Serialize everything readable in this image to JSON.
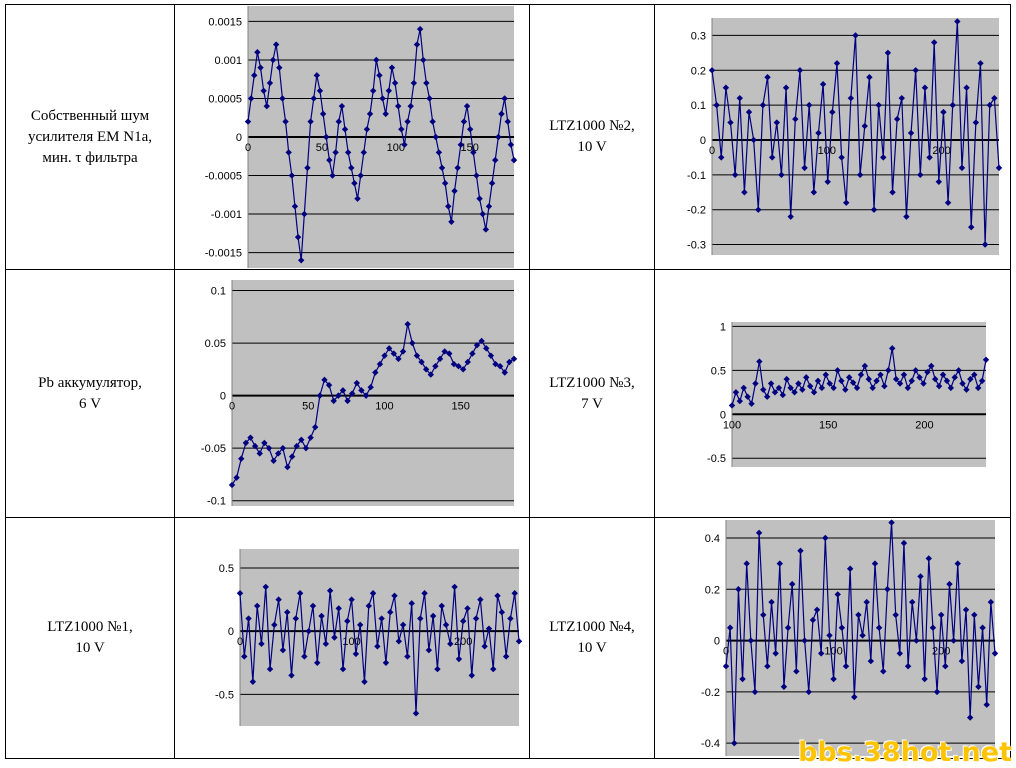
{
  "table": {
    "rows": [
      {
        "left_label": "Собственный шум\nусилителя EM N1a,\nмин. τ фильтра",
        "right_label": "LTZ1000 №2,\n10 V"
      },
      {
        "left_label": "Pb аккумулятор,\n6 V",
        "right_label": "LTZ1000 №3,\n7 V"
      },
      {
        "left_label": "LTZ1000 №1,\n10 V",
        "right_label": "LTZ1000 №4,\n10 V"
      }
    ]
  },
  "watermark": "bbs.38hot.net",
  "colors": {
    "plot_bg": "#c0c0c0",
    "series": "#000080",
    "grid": "#000000"
  },
  "chart_data": [
    {
      "type": "line",
      "title": "",
      "xlabel": "",
      "ylabel": "",
      "xlim": [
        0,
        180
      ],
      "ylim": [
        -0.0017,
        0.0017
      ],
      "yticks": [
        "0.0015",
        "0.001",
        "0.0005",
        "0",
        "-0.0005",
        "-0.001",
        "-0.0015"
      ],
      "xticks": [
        "0",
        "50",
        "100",
        "150"
      ],
      "grid": true,
      "markers": "diamond",
      "series": [
        {
          "values": [
            0.0002,
            0.0005,
            0.0008,
            0.0011,
            0.0009,
            0.0006,
            0.0004,
            0.0007,
            0.001,
            0.0012,
            0.0009,
            0.0005,
            0.0002,
            -0.0002,
            -0.0005,
            -0.0009,
            -0.0013,
            -0.0016,
            -0.001,
            -0.0004,
            0.0002,
            0.0005,
            0.0008,
            0.0006,
            0.0003,
            0.0,
            -0.0003,
            -0.0005,
            -0.0002,
            0.0002,
            0.0004,
            0.0001,
            -0.0002,
            -0.0004,
            -0.0006,
            -0.0008,
            -0.0005,
            -0.0002,
            0.0001,
            0.0003,
            0.0006,
            0.001,
            0.0008,
            0.0005,
            0.0003,
            0.0006,
            0.0009,
            0.0007,
            0.0004,
            0.0001,
            -0.0001,
            0.0002,
            0.0004,
            0.0007,
            0.0012,
            0.0014,
            0.001,
            0.0007,
            0.0005,
            0.0002,
            0.0,
            -0.0002,
            -0.0004,
            -0.0006,
            -0.0009,
            -0.0011,
            -0.0007,
            -0.0004,
            -0.0001,
            0.0002,
            0.0004,
            0.0001,
            -0.0002,
            -0.0005,
            -0.0008,
            -0.001,
            -0.0012,
            -0.0009,
            -0.0006,
            -0.0003,
            0.0,
            0.0003,
            0.0005,
            0.0002,
            -0.0001,
            -0.0003
          ]
        }
      ]
    },
    {
      "type": "line",
      "title": "",
      "xlabel": "",
      "ylabel": "",
      "xlim": [
        0,
        250
      ],
      "ylim": [
        -0.33,
        0.35
      ],
      "yticks": [
        "0.3",
        "0.2",
        "0.1",
        "0",
        "-0.1",
        "-0.2",
        "-0.3"
      ],
      "xticks": [
        "0",
        "100",
        "200"
      ],
      "grid": true,
      "markers": "diamond",
      "series": [
        {
          "values": [
            0.2,
            0.1,
            -0.05,
            0.15,
            0.05,
            -0.1,
            0.12,
            -0.15,
            0.08,
            0.0,
            -0.2,
            0.1,
            0.18,
            -0.05,
            0.05,
            -0.1,
            0.15,
            -0.22,
            0.06,
            0.2,
            -0.08,
            0.1,
            -0.15,
            0.02,
            0.16,
            -0.12,
            0.08,
            0.22,
            -0.05,
            -0.18,
            0.12,
            0.3,
            -0.1,
            0.04,
            0.18,
            -0.2,
            0.1,
            -0.05,
            0.25,
            -0.15,
            0.06,
            0.12,
            -0.22,
            0.02,
            0.2,
            -0.1,
            0.15,
            -0.05,
            0.28,
            -0.12,
            0.08,
            -0.18,
            0.1,
            0.34,
            -0.08,
            0.15,
            -0.25,
            0.05,
            0.22,
            -0.3,
            0.1,
            0.12,
            -0.08
          ]
        }
      ]
    },
    {
      "type": "line",
      "title": "",
      "xlabel": "",
      "ylabel": "",
      "xlim": [
        0,
        185
      ],
      "ylim": [
        -0.105,
        0.11
      ],
      "yticks": [
        "0.1",
        "0.05",
        "0",
        "-0.05",
        "-0.1"
      ],
      "xticks": [
        "0",
        "50",
        "100",
        "150"
      ],
      "grid": true,
      "markers": "diamond",
      "series": [
        {
          "values": [
            -0.085,
            -0.078,
            -0.06,
            -0.045,
            -0.04,
            -0.048,
            -0.055,
            -0.045,
            -0.05,
            -0.062,
            -0.055,
            -0.05,
            -0.068,
            -0.058,
            -0.048,
            -0.042,
            -0.05,
            -0.04,
            -0.03,
            0.0,
            0.015,
            0.01,
            -0.005,
            0.0,
            0.005,
            -0.005,
            0.002,
            0.012,
            0.005,
            0.0,
            0.008,
            0.022,
            0.03,
            0.038,
            0.045,
            0.04,
            0.035,
            0.042,
            0.068,
            0.05,
            0.038,
            0.032,
            0.025,
            0.02,
            0.028,
            0.035,
            0.042,
            0.04,
            0.03,
            0.028,
            0.025,
            0.032,
            0.04,
            0.048,
            0.052,
            0.045,
            0.038,
            0.03,
            0.028,
            0.022,
            0.032,
            0.035
          ]
        }
      ]
    },
    {
      "type": "line",
      "title": "",
      "xlabel": "",
      "ylabel": "",
      "xlim": [
        100,
        232
      ],
      "ylim": [
        -0.6,
        1.05
      ],
      "yticks": [
        "1",
        "0.5",
        "0",
        "-0.5"
      ],
      "xticks": [
        "100",
        "150",
        "200"
      ],
      "grid": true,
      "markers": "diamond",
      "series": [
        {
          "values": [
            0.1,
            0.25,
            0.15,
            0.3,
            0.2,
            0.12,
            0.35,
            0.6,
            0.28,
            0.2,
            0.35,
            0.25,
            0.3,
            0.22,
            0.4,
            0.3,
            0.25,
            0.35,
            0.28,
            0.42,
            0.32,
            0.25,
            0.38,
            0.3,
            0.45,
            0.35,
            0.3,
            0.5,
            0.38,
            0.28,
            0.42,
            0.36,
            0.3,
            0.45,
            0.55,
            0.4,
            0.3,
            0.38,
            0.45,
            0.32,
            0.5,
            0.75,
            0.4,
            0.35,
            0.45,
            0.3,
            0.38,
            0.5,
            0.42,
            0.35,
            0.48,
            0.55,
            0.4,
            0.32,
            0.45,
            0.38,
            0.3,
            0.42,
            0.5,
            0.35,
            0.28,
            0.4,
            0.45,
            0.3,
            0.38,
            0.62
          ]
        }
      ]
    },
    {
      "type": "line",
      "title": "",
      "xlabel": "",
      "ylabel": "",
      "xlim": [
        0,
        250
      ],
      "ylim": [
        -0.75,
        0.65
      ],
      "yticks": [
        "0.5",
        "0",
        "-0.5"
      ],
      "xticks": [
        "0",
        "100",
        "200"
      ],
      "grid": true,
      "markers": "diamond",
      "series": [
        {
          "values": [
            0.3,
            -0.2,
            0.1,
            -0.4,
            0.2,
            -0.1,
            0.35,
            -0.3,
            0.05,
            0.25,
            -0.15,
            0.15,
            -0.35,
            0.1,
            0.3,
            -0.2,
            0.0,
            0.2,
            -0.25,
            0.12,
            -0.1,
            0.32,
            -0.05,
            0.18,
            -0.3,
            0.08,
            0.25,
            -0.18,
            0.05,
            -0.4,
            0.2,
            0.3,
            -0.12,
            0.1,
            -0.25,
            0.15,
            0.28,
            -0.08,
            0.05,
            -0.2,
            0.22,
            -0.65,
            0.1,
            0.3,
            -0.15,
            0.12,
            -0.3,
            0.2,
            0.05,
            -0.1,
            0.35,
            -0.22,
            0.08,
            0.18,
            -0.35,
            0.1,
            0.25,
            -0.12,
            0.02,
            -0.3,
            0.28,
            0.15,
            -0.2,
            0.1,
            0.3,
            -0.08
          ]
        }
      ]
    },
    {
      "type": "line",
      "title": "",
      "xlabel": "",
      "ylabel": "",
      "xlim": [
        0,
        250
      ],
      "ylim": [
        -0.45,
        0.47
      ],
      "yticks": [
        "0.4",
        "0.2",
        "0",
        "-0.2",
        "-0.4"
      ],
      "xticks": [
        "0",
        "100",
        "200"
      ],
      "grid": true,
      "markers": "diamond",
      "series": [
        {
          "values": [
            -0.1,
            0.05,
            -0.4,
            0.2,
            -0.15,
            0.3,
            0.0,
            -0.2,
            0.42,
            0.1,
            -0.1,
            0.15,
            -0.05,
            0.3,
            -0.18,
            0.05,
            0.22,
            -0.12,
            0.35,
            0.0,
            -0.2,
            0.08,
            0.12,
            -0.05,
            0.4,
            0.02,
            -0.15,
            0.18,
            0.05,
            -0.1,
            0.28,
            -0.22,
            0.1,
            0.02,
            0.15,
            -0.08,
            0.3,
            0.05,
            -0.12,
            0.2,
            0.46,
            0.1,
            -0.05,
            0.38,
            -0.1,
            0.15,
            0.0,
            0.25,
            -0.15,
            0.32,
            0.05,
            -0.2,
            0.1,
            -0.1,
            0.22,
            0.0,
            0.3,
            -0.08,
            0.12,
            -0.3,
            0.1,
            -0.18,
            0.05,
            -0.25,
            0.15,
            -0.05
          ]
        }
      ]
    }
  ]
}
